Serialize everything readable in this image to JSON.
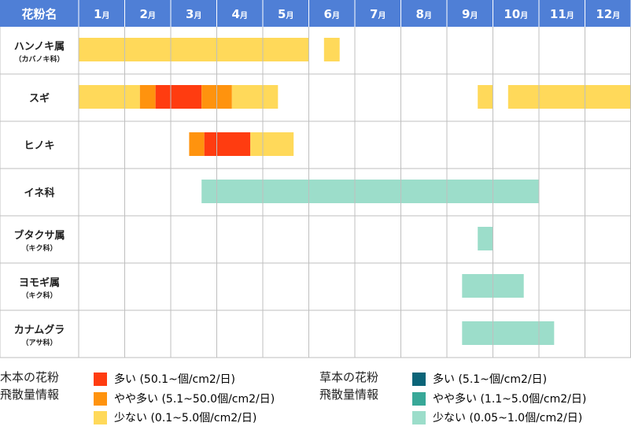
{
  "chart_data": {
    "type": "table",
    "header": {
      "corner": "花粉名",
      "months": [
        {
          "num": "1",
          "unit": "月"
        },
        {
          "num": "2",
          "unit": "月"
        },
        {
          "num": "3",
          "unit": "月"
        },
        {
          "num": "4",
          "unit": "月"
        },
        {
          "num": "5",
          "unit": "月"
        },
        {
          "num": "6",
          "unit": "月"
        },
        {
          "num": "7",
          "unit": "月"
        },
        {
          "num": "8",
          "unit": "月"
        },
        {
          "num": "9",
          "unit": "月"
        },
        {
          "num": "10",
          "unit": "月"
        },
        {
          "num": "11",
          "unit": "月"
        },
        {
          "num": "12",
          "unit": "月"
        }
      ]
    },
    "x_range": [
      1,
      13
    ],
    "rows": [
      {
        "name": "ハンノキ属",
        "sub": "（カバノキ科）",
        "type": "tree",
        "segments": [
          {
            "start": 1.0,
            "end": 6.0,
            "level": "low"
          },
          {
            "start": 6.33,
            "end": 6.67,
            "level": "low"
          }
        ]
      },
      {
        "name": "スギ",
        "sub": "",
        "type": "tree",
        "segments": [
          {
            "start": 1.0,
            "end": 2.33,
            "level": "low"
          },
          {
            "start": 2.33,
            "end": 2.67,
            "level": "mid"
          },
          {
            "start": 2.67,
            "end": 3.67,
            "level": "high"
          },
          {
            "start": 3.67,
            "end": 4.33,
            "level": "mid"
          },
          {
            "start": 4.33,
            "end": 5.33,
            "level": "low"
          },
          {
            "start": 9.67,
            "end": 10.0,
            "level": "low"
          },
          {
            "start": 10.33,
            "end": 13.0,
            "level": "low"
          }
        ]
      },
      {
        "name": "ヒノキ",
        "sub": "",
        "type": "tree",
        "segments": [
          {
            "start": 3.4,
            "end": 3.73,
            "level": "mid"
          },
          {
            "start": 3.73,
            "end": 4.73,
            "level": "high"
          },
          {
            "start": 4.73,
            "end": 5.67,
            "level": "low"
          }
        ]
      },
      {
        "name": "イネ科",
        "sub": "",
        "type": "grass",
        "segments": [
          {
            "start": 3.67,
            "end": 11.0,
            "level": "low"
          }
        ]
      },
      {
        "name": "ブタクサ属",
        "sub": "（キク科）",
        "type": "grass",
        "segments": [
          {
            "start": 9.67,
            "end": 10.0,
            "level": "low"
          }
        ]
      },
      {
        "name": "ヨモギ属",
        "sub": "（キク科）",
        "type": "grass",
        "segments": [
          {
            "start": 9.33,
            "end": 10.67,
            "level": "low"
          }
        ]
      },
      {
        "name": "カナムグラ",
        "sub": "（アサ科）",
        "type": "grass",
        "segments": [
          {
            "start": 9.33,
            "end": 11.33,
            "level": "low"
          }
        ]
      }
    ],
    "colors": {
      "header_bg": "#4f7fd6",
      "grid": "#bfbfbf",
      "tree": {
        "high": "#ff3c10",
        "mid": "#ff930e",
        "low": "#ffd95a"
      },
      "grass": {
        "high": "#0b6478",
        "mid": "#38a898",
        "low": "#9cddca"
      }
    }
  },
  "legend": {
    "tree": {
      "title_line1": "木本の花粉",
      "title_line2": "飛散量情報",
      "items": [
        {
          "label": "多い (50.1~個/cm2/日)",
          "color": "#ff3c10"
        },
        {
          "label": "やや多い (5.1~50.0個/cm2/日)",
          "color": "#ff930e"
        },
        {
          "label": "少ない (0.1~5.0個/cm2/日)",
          "color": "#ffd95a"
        }
      ]
    },
    "grass": {
      "title_line1": "草本の花粉",
      "title_line2": "飛散量情報",
      "items": [
        {
          "label": "多い (5.1~個/cm2/日)",
          "color": "#0b6478"
        },
        {
          "label": "やや多い (1.1~5.0個/cm2/日)",
          "color": "#38a898"
        },
        {
          "label": "少ない (0.05~1.0個/cm2/日)",
          "color": "#9cddca"
        }
      ]
    }
  }
}
